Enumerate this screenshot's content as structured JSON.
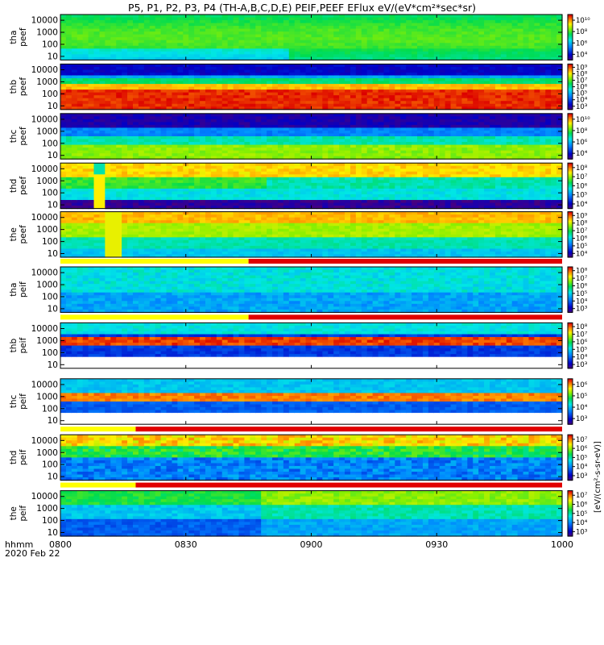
{
  "title": "P5, P1, P2, P3, P4 (TH-A,B,C,D,E) PEIF,PEEF EFlux eV/(eV*cm²*sec*sr)",
  "x_axis": {
    "label_line1": "hhmm",
    "label_line2": "2020 Feb 22",
    "ticks": [
      "0800",
      "0830",
      "0900",
      "0930",
      "1000"
    ]
  },
  "colorbar_unit_label": "[eV/(cm²-s-sr-eV)]",
  "chart_data": [
    {
      "type": "heatmap",
      "probe": "tha",
      "species": "peef",
      "ylabel": [
        "tha",
        "peef"
      ],
      "y_ticks": [
        "10000",
        "1000",
        "100",
        "10"
      ],
      "y_range_eV": [
        5,
        30000
      ],
      "colorbar_ticks": [
        "10⁶",
        "10⁸",
        "10¹⁰",
        "10⁴"
      ],
      "colorbar_ticks_ordered": [
        "10¹⁰",
        "10⁸",
        "10⁶",
        "10⁴"
      ],
      "cbar_range_log": [
        3.5,
        10.5
      ],
      "fill_bar": null
    },
    {
      "type": "heatmap",
      "probe": "thb",
      "species": "peef",
      "ylabel": [
        "thb",
        "peef"
      ],
      "y_ticks": [
        "10000",
        "1000",
        "100",
        "10"
      ],
      "y_range_eV": [
        5,
        30000
      ],
      "colorbar_ticks_ordered": [
        "10⁹",
        "10⁸",
        "10⁷",
        "10⁶",
        "10⁵",
        "10⁴",
        "10³"
      ],
      "cbar_range_log": [
        3,
        9.5
      ],
      "fill_bar": null
    },
    {
      "type": "heatmap",
      "probe": "thc",
      "species": "peef",
      "ylabel": [
        "thc",
        "peef"
      ],
      "y_ticks": [
        "10000",
        "1000",
        "100",
        "10"
      ],
      "y_range_eV": [
        5,
        30000
      ],
      "colorbar_ticks_ordered": [
        "10¹⁰",
        "10⁸",
        "10⁶",
        "10⁴"
      ],
      "cbar_range_log": [
        3.5,
        10.5
      ],
      "fill_bar": null
    },
    {
      "type": "heatmap",
      "probe": "thd",
      "species": "peef",
      "ylabel": [
        "thd",
        "peef"
      ],
      "y_ticks": [
        "10000",
        "1000",
        "100",
        "10"
      ],
      "y_range_eV": [
        5,
        30000
      ],
      "colorbar_ticks_ordered": [
        "10⁸",
        "10⁷",
        "10⁶",
        "10⁵",
        "10⁴"
      ],
      "cbar_range_log": [
        3.5,
        8.5
      ],
      "fill_bar": null
    },
    {
      "type": "heatmap",
      "probe": "the",
      "species": "peef",
      "ylabel": [
        "the",
        "peef"
      ],
      "y_ticks": [
        "10000",
        "1000",
        "100",
        "10"
      ],
      "y_range_eV": [
        5,
        30000
      ],
      "colorbar_ticks_ordered": [
        "10⁹",
        "10⁸",
        "10⁷",
        "10⁶",
        "10⁵",
        "10⁴"
      ],
      "cbar_range_log": [
        3.5,
        9.5
      ],
      "fill_bar": null
    },
    {
      "type": "heatmap",
      "probe": "tha",
      "species": "peif",
      "ylabel": [
        "tha",
        "peif"
      ],
      "y_ticks": [
        "10000",
        "1000",
        "100",
        "10"
      ],
      "y_range_eV": [
        5,
        30000
      ],
      "colorbar_ticks_ordered": [
        "10⁸",
        "10⁷",
        "10⁶",
        "10⁵",
        "10⁴",
        "10³"
      ],
      "cbar_range_log": [
        2.5,
        8.5
      ],
      "fill_bar": {
        "segments": [
          {
            "from": "0800",
            "to": "0845",
            "color": "#ffff00"
          },
          {
            "from": "0845",
            "to": "1000",
            "color": "#e10000"
          }
        ]
      }
    },
    {
      "type": "heatmap",
      "probe": "thb",
      "species": "peif",
      "ylabel": [
        "thb",
        "peif"
      ],
      "y_ticks": [
        "10000",
        "1000",
        "100",
        "10"
      ],
      "y_range_eV": [
        5,
        30000
      ],
      "colorbar_ticks_ordered": [
        "10⁸",
        "10⁷",
        "10⁶",
        "10⁵",
        "10⁴",
        "10³"
      ],
      "cbar_range_log": [
        2.5,
        8.5
      ],
      "fill_bar": {
        "segments": [
          {
            "from": "0800",
            "to": "0845",
            "color": "#ffff00"
          },
          {
            "from": "0845",
            "to": "1000",
            "color": "#e10000"
          }
        ]
      }
    },
    {
      "type": "heatmap",
      "probe": "thc",
      "species": "peif",
      "ylabel": [
        "thc",
        "peif"
      ],
      "y_ticks": [
        "10000",
        "1000",
        "100",
        "10"
      ],
      "y_range_eV": [
        5,
        30000
      ],
      "colorbar_ticks_ordered": [
        "10⁶",
        "10⁵",
        "10⁴",
        "10³"
      ],
      "cbar_range_log": [
        2.5,
        6.5
      ],
      "fill_bar": null
    },
    {
      "type": "heatmap",
      "probe": "thd",
      "species": "peif",
      "ylabel": [
        "thd",
        "peif"
      ],
      "y_ticks": [
        "10000",
        "1000",
        "100",
        "10"
      ],
      "y_range_eV": [
        5,
        30000
      ],
      "colorbar_ticks_ordered": [
        "10⁷",
        "10⁶",
        "10⁵",
        "10⁴",
        "10³"
      ],
      "cbar_range_log": [
        2.5,
        7.5
      ],
      "fill_bar": {
        "segments": [
          {
            "from": "0800",
            "to": "0818",
            "color": "#ffff00"
          },
          {
            "from": "0818",
            "to": "1000",
            "color": "#e10000"
          }
        ]
      }
    },
    {
      "type": "heatmap",
      "probe": "the",
      "species": "peif",
      "ylabel": [
        "the",
        "peif"
      ],
      "y_ticks": [
        "10000",
        "1000",
        "100",
        "10"
      ],
      "y_range_eV": [
        5,
        30000
      ],
      "colorbar_ticks_ordered": [
        "10⁷",
        "10⁶",
        "10⁵",
        "10⁴",
        "10³"
      ],
      "cbar_range_log": [
        2.5,
        7.5
      ],
      "fill_bar": {
        "segments": [
          {
            "from": "0800",
            "to": "0818",
            "color": "#ffff00"
          },
          {
            "from": "0818",
            "to": "1000",
            "color": "#e10000"
          }
        ]
      }
    }
  ]
}
